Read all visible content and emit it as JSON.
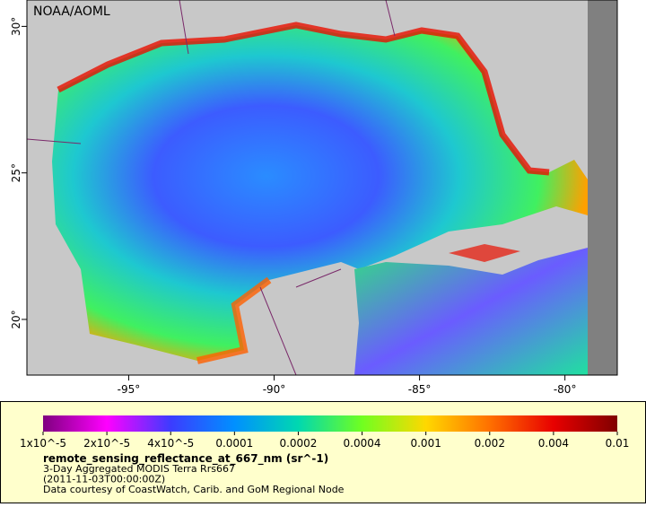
{
  "title": "NOAA/AOML",
  "map": {
    "xlim": [
      -98.5,
      -78.2
    ],
    "ylim": [
      18.1,
      30.9
    ],
    "xticks": [
      {
        "value": -95,
        "label": "-95°"
      },
      {
        "value": -90,
        "label": "-90°"
      },
      {
        "value": -85,
        "label": "-85°"
      },
      {
        "value": -80,
        "label": "-80°"
      }
    ],
    "yticks": [
      {
        "value": 20,
        "label": "20°"
      },
      {
        "value": 25,
        "label": "25°"
      },
      {
        "value": 30,
        "label": "30°"
      }
    ]
  },
  "colorbar": {
    "title": "remote_sensing_reflectance_at_667_nm (sr^-1)",
    "scale": "log",
    "ticks": [
      {
        "value": 1e-05,
        "label": "1x10^-5"
      },
      {
        "value": 2e-05,
        "label": "2x10^-5"
      },
      {
        "value": 4e-05,
        "label": "4x10^-5"
      },
      0.0001,
      0.0002,
      0.0004,
      0.001,
      0.002,
      0.004,
      0.01
    ],
    "colors": [
      "#7f007f",
      "#ff00ff",
      "#3c3cff",
      "#0090ff",
      "#00d8b0",
      "#70ff20",
      "#ffd800",
      "#ff7000",
      "#e80000",
      "#800000"
    ]
  },
  "notes": [
    "3-Day Aggregated MODIS Terra Rrs667",
    "(2011-11-03T00:00:00Z)",
    "Data courtesy of CoastWatch, Carib. and GoM Regional Node"
  ]
}
